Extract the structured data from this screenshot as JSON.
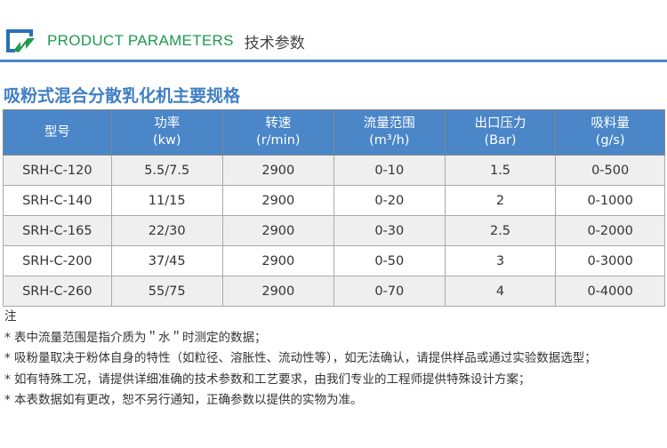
{
  "header": {
    "title_en": "PRODUCT PARAMETERS",
    "title_cn": "技术参数"
  },
  "colors": {
    "accent": "#4a86c8",
    "brand_green": "#1f9a4e",
    "title": "#3f7fc4"
  },
  "title": "吸粉式混合分散乳化机主要规格",
  "table": {
    "headers": [
      [
        "型号",
        ""
      ],
      [
        "功率",
        "(kw)"
      ],
      [
        "转速",
        "(r/min)"
      ],
      [
        "流量范围",
        "(m³/h)"
      ],
      [
        "出口压力",
        "(Bar)"
      ],
      [
        "吸料量",
        "(g/s)"
      ]
    ],
    "rows": [
      [
        "SRH-C-120",
        "5.5/7.5",
        "2900",
        "0-10",
        "1.5",
        "0-500"
      ],
      [
        "SRH-C-140",
        "11/15",
        "2900",
        "0-20",
        "2",
        "0-1000"
      ],
      [
        "SRH-C-165",
        "22/30",
        "2900",
        "0-30",
        "2.5",
        "0-2000"
      ],
      [
        "SRH-C-200",
        "37/45",
        "2900",
        "0-50",
        "3",
        "0-3000"
      ],
      [
        "SRH-C-260",
        "55/75",
        "2900",
        "0-70",
        "4",
        "0-4000"
      ]
    ]
  },
  "notes": {
    "heading": "注",
    "items": [
      "* 表中流量范围是指介质为＂水＂时测定的数据；",
      "* 吸粉量取决于粉体自身的特性（如粒径、溶胀性、流动性等），如无法确认，请提供样品或通过实验数据选型；",
      "* 如有特殊工况，请提供详细准确的技术参数和工艺要求，由我们专业的工程师提供特殊设计方案；",
      "* 本表数据如有更改，恕不另行通知，正确参数以提供的实物为准。"
    ]
  }
}
